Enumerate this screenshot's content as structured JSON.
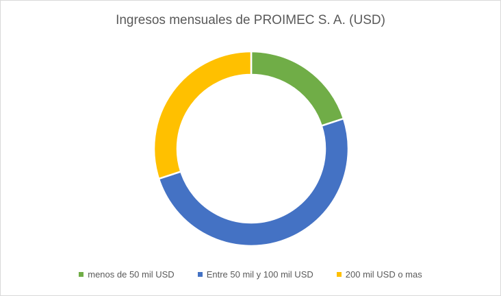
{
  "chart_data": {
    "type": "pie",
    "variant": "doughnut",
    "title": "Ingresos mensuales de PROIMEC S. A. (USD)",
    "categories": [
      "menos de 50 mil USD",
      "Entre 50 mil y 100 mil USD",
      "200 mil USD o mas"
    ],
    "values": [
      20,
      50,
      30
    ],
    "unit": "%",
    "colors": [
      "#70AD47",
      "#4472C4",
      "#FFC000"
    ],
    "legend_position": "bottom",
    "data_labels": false
  },
  "chart": {
    "title": "Ingresos mensuales de PROIMEC S. A. (USD)",
    "legend": [
      {
        "label": "menos de 50 mil USD",
        "color": "#70AD47"
      },
      {
        "label": "Entre 50 mil y 100 mil USD",
        "color": "#4472C4"
      },
      {
        "label": "200 mil USD o mas",
        "color": "#FFC000"
      }
    ]
  }
}
